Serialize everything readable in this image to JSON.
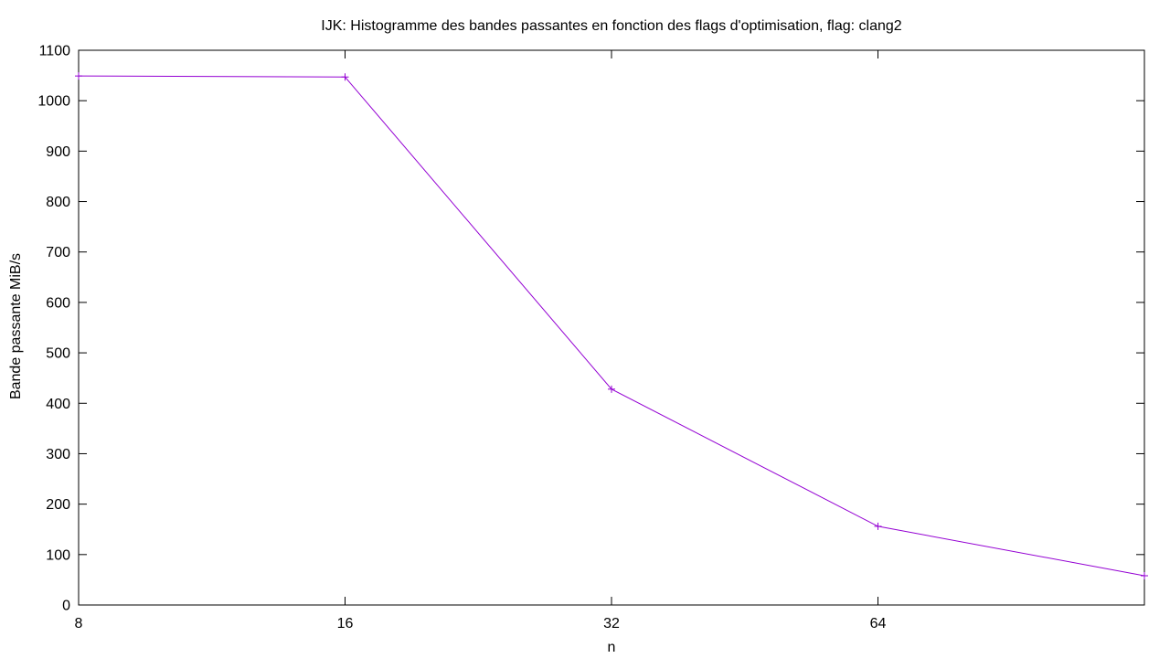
{
  "chart_data": {
    "type": "line",
    "title": "IJK: Histogramme des bandes passantes en fonction des flags d'optimisation, flag: clang2",
    "xlabel": "n",
    "ylabel": "Bande passante MiB/s",
    "x_scale": "log2",
    "xlim": [
      8,
      128
    ],
    "ylim": [
      0,
      1100
    ],
    "x_ticks": [
      8,
      16,
      32,
      64
    ],
    "y_ticks": [
      0,
      100,
      200,
      300,
      400,
      500,
      600,
      700,
      800,
      900,
      1000,
      1100
    ],
    "grid": false,
    "legend": "none",
    "series": [
      {
        "color": "#9400d3",
        "marker": "plus",
        "x": [
          8,
          16,
          32,
          64,
          128
        ],
        "y": [
          1049,
          1047,
          428,
          156,
          58
        ]
      }
    ]
  }
}
